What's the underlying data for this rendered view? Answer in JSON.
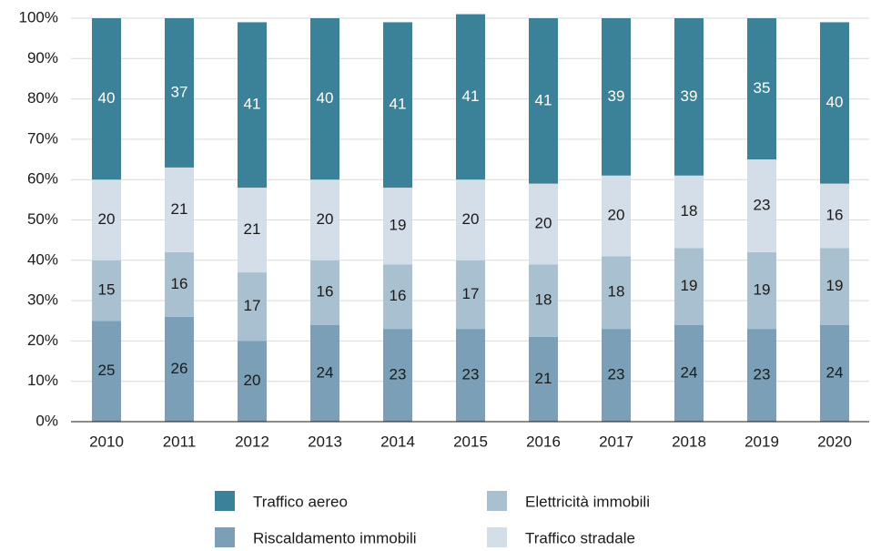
{
  "chart_data": {
    "type": "bar",
    "stacked": true,
    "categories": [
      "2010",
      "2011",
      "2012",
      "2013",
      "2014",
      "2015",
      "2016",
      "2017",
      "2018",
      "2019",
      "2020"
    ],
    "series": [
      {
        "name": "Riscaldamento immobili",
        "color": "#7a9fb6",
        "label_color": "#1a1a1a",
        "values": [
          25,
          26,
          20,
          24,
          23,
          23,
          21,
          23,
          24,
          23,
          24
        ]
      },
      {
        "name": "Elettricità immobili",
        "color": "#a9c0d1",
        "label_color": "#1a1a1a",
        "values": [
          15,
          16,
          17,
          16,
          16,
          17,
          18,
          18,
          19,
          19,
          19
        ]
      },
      {
        "name": "Traffico stradale",
        "color": "#d4dee8",
        "label_color": "#1a1a1a",
        "values": [
          20,
          21,
          21,
          20,
          19,
          20,
          20,
          20,
          18,
          23,
          16
        ]
      },
      {
        "name": "Traffico aereo",
        "color": "#3b8299",
        "label_color": "#ffffff",
        "values": [
          40,
          37,
          41,
          40,
          41,
          41,
          41,
          39,
          39,
          35,
          40
        ]
      }
    ],
    "ylim": [
      0,
      100
    ],
    "yticks": [
      {
        "value": 0,
        "label": "0%"
      },
      {
        "value": 10,
        "label": "10%"
      },
      {
        "value": 20,
        "label": "20%"
      },
      {
        "value": 30,
        "label": "30%"
      },
      {
        "value": 40,
        "label": "40%"
      },
      {
        "value": 50,
        "label": "50%"
      },
      {
        "value": 60,
        "label": "60%"
      },
      {
        "value": 70,
        "label": "70%"
      },
      {
        "value": 80,
        "label": "80%"
      },
      {
        "value": 90,
        "label": "90%"
      },
      {
        "value": 100,
        "label": "100%"
      }
    ],
    "grid": true,
    "legend": "bottom"
  }
}
